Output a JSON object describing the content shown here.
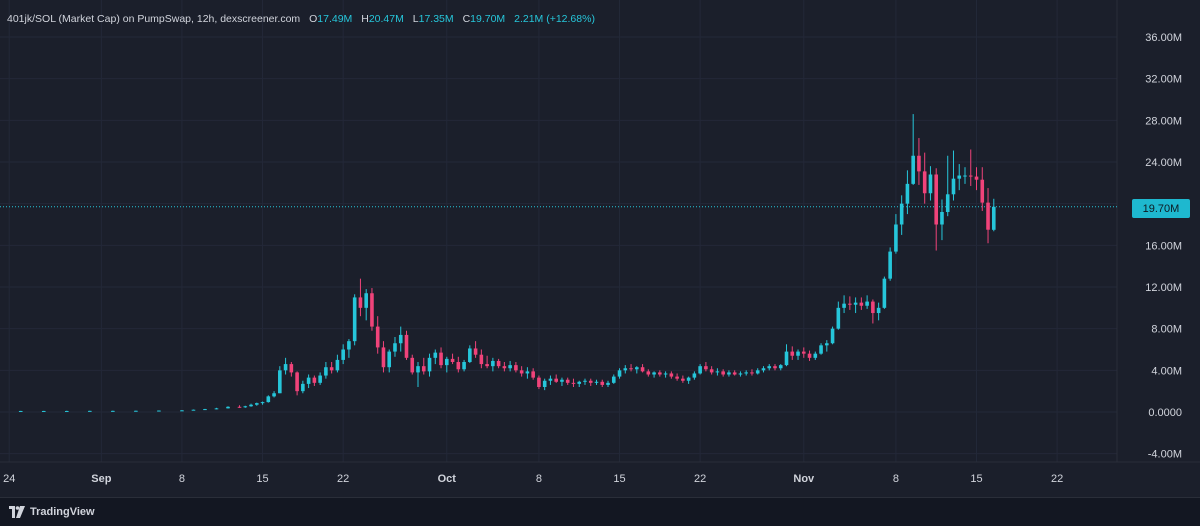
{
  "legend": {
    "title": "401jk/SOL (Market Cap) on PumpSwap, 12h, dexscreener.com",
    "o_label": "O",
    "o_value": "17.49M",
    "h_label": "H",
    "h_value": "20.47M",
    "l_label": "L",
    "l_value": "17.35M",
    "c_label": "C",
    "c_value": "19.70M",
    "change": "2.21M (+12.68%)"
  },
  "price_tag": "19.70M",
  "footer": {
    "brand": "TradingView",
    "logo_icon": "tradingview-logo-icon"
  },
  "colors": {
    "up": "#26c6da",
    "down": "#f0437a",
    "background": "#1b1f2b",
    "grid": "#232838",
    "text": "#d1d4dc"
  },
  "chart_data": {
    "type": "candlestick",
    "interval": "12h",
    "y_unit": "market cap (SOL)",
    "ylim": [
      -6,
      38
    ],
    "y_ticks": [
      -4,
      0,
      4,
      8,
      12,
      16,
      20,
      24,
      28,
      32,
      36
    ],
    "y_tick_labels": [
      "-4.00M",
      "0.0000",
      "4.00M",
      "8.00M",
      "12.00M",
      "16.00M",
      "20.00M",
      "24.00M",
      "28.00M",
      "32.00M",
      "36.00M"
    ],
    "x_tick_labels": [
      "24",
      "Sep",
      "8",
      "15",
      "22",
      "Oct",
      "8",
      "15",
      "22",
      "Nov",
      "8",
      "15",
      "22"
    ],
    "x_tick_days": [
      -7,
      1,
      8,
      15,
      22,
      31,
      39,
      46,
      53,
      62,
      70,
      77,
      84
    ],
    "x_tick_dates": [
      "2025-08-24",
      "2025-09-01",
      "2025-09-08",
      "2025-09-15",
      "2025-09-22",
      "2025-10-01",
      "2025-10-08",
      "2025-10-15",
      "2025-10-22",
      "2025-11-01",
      "2025-11-08",
      "2025-11-15",
      "2025-11-22"
    ],
    "x_range_days": [
      -7.8,
      89.2
    ],
    "current_price": 19.7,
    "grid": true,
    "candles": [
      {
        "d": -8.0,
        "o": 0.1,
        "h": 0.11,
        "l": 0.09,
        "c": 0.1
      },
      {
        "d": -6.0,
        "o": 0.1,
        "h": 0.11,
        "l": 0.09,
        "c": 0.1
      },
      {
        "d": -4.0,
        "o": 0.1,
        "h": 0.11,
        "l": 0.09,
        "c": 0.1
      },
      {
        "d": -2.0,
        "o": 0.1,
        "h": 0.12,
        "l": 0.09,
        "c": 0.1
      },
      {
        "d": 0.0,
        "o": 0.1,
        "h": 0.12,
        "l": 0.09,
        "c": 0.11
      },
      {
        "d": 2.0,
        "o": 0.11,
        "h": 0.13,
        "l": 0.1,
        "c": 0.11
      },
      {
        "d": 4.0,
        "o": 0.11,
        "h": 0.13,
        "l": 0.1,
        "c": 0.12
      },
      {
        "d": 6.0,
        "o": 0.12,
        "h": 0.15,
        "l": 0.11,
        "c": 0.14
      },
      {
        "d": 8.0,
        "o": 0.14,
        "h": 0.18,
        "l": 0.13,
        "c": 0.16
      },
      {
        "d": 9.0,
        "o": 0.16,
        "h": 0.24,
        "l": 0.15,
        "c": 0.22
      },
      {
        "d": 10.0,
        "o": 0.22,
        "h": 0.3,
        "l": 0.2,
        "c": 0.28
      },
      {
        "d": 11.0,
        "o": 0.28,
        "h": 0.4,
        "l": 0.26,
        "c": 0.35
      },
      {
        "d": 12.0,
        "o": 0.35,
        "h": 0.55,
        "l": 0.33,
        "c": 0.5
      },
      {
        "d": 13.0,
        "o": 0.5,
        "h": 0.65,
        "l": 0.4,
        "c": 0.45
      },
      {
        "d": 13.5,
        "o": 0.45,
        "h": 0.6,
        "l": 0.4,
        "c": 0.55
      },
      {
        "d": 14.0,
        "o": 0.55,
        "h": 0.8,
        "l": 0.5,
        "c": 0.7
      },
      {
        "d": 14.5,
        "o": 0.7,
        "h": 0.9,
        "l": 0.6,
        "c": 0.85
      },
      {
        "d": 15.0,
        "o": 0.85,
        "h": 1.0,
        "l": 0.7,
        "c": 0.95
      },
      {
        "d": 15.5,
        "o": 0.95,
        "h": 1.6,
        "l": 0.9,
        "c": 1.5
      },
      {
        "d": 16.0,
        "o": 1.5,
        "h": 2.0,
        "l": 1.4,
        "c": 1.8
      },
      {
        "d": 16.5,
        "o": 1.8,
        "h": 4.4,
        "l": 1.8,
        "c": 4.0
      },
      {
        "d": 17.0,
        "o": 4.0,
        "h": 5.2,
        "l": 3.6,
        "c": 4.6
      },
      {
        "d": 17.5,
        "o": 4.6,
        "h": 4.8,
        "l": 3.4,
        "c": 3.8
      },
      {
        "d": 18.0,
        "o": 3.8,
        "h": 3.9,
        "l": 1.6,
        "c": 2.0
      },
      {
        "d": 18.5,
        "o": 2.0,
        "h": 3.0,
        "l": 1.8,
        "c": 2.7
      },
      {
        "d": 19.0,
        "o": 2.7,
        "h": 3.6,
        "l": 2.3,
        "c": 3.3
      },
      {
        "d": 19.5,
        "o": 3.3,
        "h": 3.5,
        "l": 2.5,
        "c": 2.8
      },
      {
        "d": 20.0,
        "o": 2.8,
        "h": 3.8,
        "l": 2.6,
        "c": 3.5
      },
      {
        "d": 20.5,
        "o": 3.5,
        "h": 4.8,
        "l": 3.2,
        "c": 4.3
      },
      {
        "d": 21.0,
        "o": 4.3,
        "h": 4.8,
        "l": 3.7,
        "c": 4.0
      },
      {
        "d": 21.5,
        "o": 4.0,
        "h": 5.5,
        "l": 3.8,
        "c": 5.0
      },
      {
        "d": 22.0,
        "o": 5.0,
        "h": 6.5,
        "l": 4.6,
        "c": 6.0
      },
      {
        "d": 22.5,
        "o": 6.0,
        "h": 7.0,
        "l": 5.2,
        "c": 6.8
      },
      {
        "d": 23.0,
        "o": 6.8,
        "h": 11.3,
        "l": 6.4,
        "c": 11.0
      },
      {
        "d": 23.5,
        "o": 11.0,
        "h": 12.8,
        "l": 9.2,
        "c": 10.0
      },
      {
        "d": 24.0,
        "o": 10.0,
        "h": 11.8,
        "l": 8.8,
        "c": 11.4
      },
      {
        "d": 24.5,
        "o": 11.4,
        "h": 11.9,
        "l": 7.8,
        "c": 8.2
      },
      {
        "d": 25.0,
        "o": 8.2,
        "h": 9.2,
        "l": 5.6,
        "c": 6.2
      },
      {
        "d": 25.5,
        "o": 6.2,
        "h": 6.8,
        "l": 3.8,
        "c": 4.3
      },
      {
        "d": 26.0,
        "o": 4.3,
        "h": 6.0,
        "l": 3.8,
        "c": 5.8
      },
      {
        "d": 26.5,
        "o": 5.8,
        "h": 7.2,
        "l": 5.3,
        "c": 6.6
      },
      {
        "d": 27.0,
        "o": 6.6,
        "h": 8.2,
        "l": 5.8,
        "c": 7.4
      },
      {
        "d": 27.5,
        "o": 7.4,
        "h": 7.8,
        "l": 5.0,
        "c": 5.2
      },
      {
        "d": 28.0,
        "o": 5.2,
        "h": 5.5,
        "l": 3.6,
        "c": 3.8
      },
      {
        "d": 28.5,
        "o": 3.8,
        "h": 4.8,
        "l": 2.4,
        "c": 4.4
      },
      {
        "d": 29.0,
        "o": 4.4,
        "h": 5.2,
        "l": 3.6,
        "c": 3.9
      },
      {
        "d": 29.5,
        "o": 3.9,
        "h": 5.6,
        "l": 3.4,
        "c": 5.2
      },
      {
        "d": 30.0,
        "o": 5.2,
        "h": 6.0,
        "l": 4.6,
        "c": 5.7
      },
      {
        "d": 30.5,
        "o": 5.7,
        "h": 6.2,
        "l": 4.2,
        "c": 4.5
      },
      {
        "d": 31.0,
        "o": 4.5,
        "h": 5.3,
        "l": 3.8,
        "c": 5.1
      },
      {
        "d": 31.5,
        "o": 5.1,
        "h": 5.6,
        "l": 4.6,
        "c": 4.8
      },
      {
        "d": 32.0,
        "o": 4.8,
        "h": 5.3,
        "l": 3.8,
        "c": 4.1
      },
      {
        "d": 32.5,
        "o": 4.1,
        "h": 5.0,
        "l": 3.9,
        "c": 4.8
      },
      {
        "d": 33.0,
        "o": 4.8,
        "h": 6.4,
        "l": 4.7,
        "c": 6.1
      },
      {
        "d": 33.5,
        "o": 6.1,
        "h": 6.8,
        "l": 5.2,
        "c": 5.5
      },
      {
        "d": 34.0,
        "o": 5.5,
        "h": 6.0,
        "l": 4.2,
        "c": 4.6
      },
      {
        "d": 34.5,
        "o": 4.6,
        "h": 5.4,
        "l": 4.2,
        "c": 4.4
      },
      {
        "d": 35.0,
        "o": 4.4,
        "h": 5.2,
        "l": 3.9,
        "c": 4.9
      },
      {
        "d": 35.5,
        "o": 4.9,
        "h": 5.1,
        "l": 4.2,
        "c": 4.4
      },
      {
        "d": 36.0,
        "o": 4.4,
        "h": 4.8,
        "l": 3.9,
        "c": 4.2
      },
      {
        "d": 36.5,
        "o": 4.2,
        "h": 4.9,
        "l": 3.9,
        "c": 4.5
      },
      {
        "d": 37.0,
        "o": 4.5,
        "h": 4.8,
        "l": 3.8,
        "c": 4.0
      },
      {
        "d": 37.5,
        "o": 4.0,
        "h": 4.4,
        "l": 3.4,
        "c": 3.7
      },
      {
        "d": 38.0,
        "o": 3.7,
        "h": 4.3,
        "l": 3.2,
        "c": 3.9
      },
      {
        "d": 38.5,
        "o": 3.9,
        "h": 4.2,
        "l": 3.1,
        "c": 3.3
      },
      {
        "d": 39.0,
        "o": 3.3,
        "h": 3.5,
        "l": 2.2,
        "c": 2.4
      },
      {
        "d": 39.5,
        "o": 2.4,
        "h": 3.2,
        "l": 2.1,
        "c": 3.0
      },
      {
        "d": 40.0,
        "o": 3.0,
        "h": 3.5,
        "l": 2.6,
        "c": 3.2
      },
      {
        "d": 40.5,
        "o": 3.2,
        "h": 3.6,
        "l": 2.8,
        "c": 2.9
      },
      {
        "d": 41.0,
        "o": 2.9,
        "h": 3.3,
        "l": 2.5,
        "c": 3.1
      },
      {
        "d": 41.5,
        "o": 3.1,
        "h": 3.3,
        "l": 2.6,
        "c": 2.8
      },
      {
        "d": 42.0,
        "o": 2.8,
        "h": 3.2,
        "l": 2.4,
        "c": 2.7
      },
      {
        "d": 42.5,
        "o": 2.7,
        "h": 3.0,
        "l": 2.4,
        "c": 2.9
      },
      {
        "d": 43.0,
        "o": 2.9,
        "h": 3.2,
        "l": 2.6,
        "c": 3.0
      },
      {
        "d": 43.5,
        "o": 3.0,
        "h": 3.2,
        "l": 2.5,
        "c": 2.8
      },
      {
        "d": 44.0,
        "o": 2.8,
        "h": 3.1,
        "l": 2.6,
        "c": 2.9
      },
      {
        "d": 44.5,
        "o": 2.9,
        "h": 3.1,
        "l": 2.4,
        "c": 2.6
      },
      {
        "d": 45.0,
        "o": 2.6,
        "h": 3.0,
        "l": 2.4,
        "c": 2.8
      },
      {
        "d": 45.5,
        "o": 2.8,
        "h": 3.6,
        "l": 2.7,
        "c": 3.4
      },
      {
        "d": 46.0,
        "o": 3.4,
        "h": 4.2,
        "l": 3.2,
        "c": 4.0
      },
      {
        "d": 46.5,
        "o": 4.0,
        "h": 4.5,
        "l": 3.7,
        "c": 4.2
      },
      {
        "d": 47.0,
        "o": 4.2,
        "h": 4.6,
        "l": 3.9,
        "c": 4.1
      },
      {
        "d": 47.5,
        "o": 4.1,
        "h": 4.4,
        "l": 3.7,
        "c": 4.3
      },
      {
        "d": 48.0,
        "o": 4.3,
        "h": 4.6,
        "l": 3.8,
        "c": 3.9
      },
      {
        "d": 48.5,
        "o": 3.9,
        "h": 4.1,
        "l": 3.4,
        "c": 3.6
      },
      {
        "d": 49.0,
        "o": 3.6,
        "h": 3.9,
        "l": 3.3,
        "c": 3.8
      },
      {
        "d": 49.5,
        "o": 3.8,
        "h": 4.0,
        "l": 3.4,
        "c": 3.6
      },
      {
        "d": 50.0,
        "o": 3.6,
        "h": 3.9,
        "l": 3.3,
        "c": 3.7
      },
      {
        "d": 50.5,
        "o": 3.7,
        "h": 3.9,
        "l": 3.2,
        "c": 3.4
      },
      {
        "d": 51.0,
        "o": 3.4,
        "h": 3.7,
        "l": 3.0,
        "c": 3.2
      },
      {
        "d": 51.5,
        "o": 3.2,
        "h": 3.5,
        "l": 2.8,
        "c": 3.0
      },
      {
        "d": 52.0,
        "o": 3.0,
        "h": 3.4,
        "l": 2.7,
        "c": 3.3
      },
      {
        "d": 52.5,
        "o": 3.3,
        "h": 3.9,
        "l": 3.1,
        "c": 3.7
      },
      {
        "d": 53.0,
        "o": 3.7,
        "h": 4.6,
        "l": 3.6,
        "c": 4.4
      },
      {
        "d": 53.5,
        "o": 4.4,
        "h": 4.8,
        "l": 3.9,
        "c": 4.1
      },
      {
        "d": 54.0,
        "o": 4.1,
        "h": 4.4,
        "l": 3.6,
        "c": 3.8
      },
      {
        "d": 54.5,
        "o": 3.8,
        "h": 4.2,
        "l": 3.5,
        "c": 3.9
      },
      {
        "d": 55.0,
        "o": 3.9,
        "h": 4.1,
        "l": 3.4,
        "c": 3.6
      },
      {
        "d": 55.5,
        "o": 3.6,
        "h": 4.0,
        "l": 3.4,
        "c": 3.8
      },
      {
        "d": 56.0,
        "o": 3.8,
        "h": 4.0,
        "l": 3.5,
        "c": 3.6
      },
      {
        "d": 56.5,
        "o": 3.6,
        "h": 3.9,
        "l": 3.4,
        "c": 3.7
      },
      {
        "d": 57.0,
        "o": 3.7,
        "h": 4.0,
        "l": 3.5,
        "c": 3.8
      },
      {
        "d": 57.5,
        "o": 3.8,
        "h": 4.1,
        "l": 3.5,
        "c": 3.7
      },
      {
        "d": 58.0,
        "o": 3.7,
        "h": 4.2,
        "l": 3.6,
        "c": 4.0
      },
      {
        "d": 58.5,
        "o": 4.0,
        "h": 4.4,
        "l": 3.8,
        "c": 4.2
      },
      {
        "d": 59.0,
        "o": 4.2,
        "h": 4.6,
        "l": 4.0,
        "c": 4.4
      },
      {
        "d": 59.5,
        "o": 4.4,
        "h": 4.6,
        "l": 4.0,
        "c": 4.2
      },
      {
        "d": 60.0,
        "o": 4.2,
        "h": 4.6,
        "l": 4.0,
        "c": 4.5
      },
      {
        "d": 60.5,
        "o": 4.5,
        "h": 6.5,
        "l": 4.4,
        "c": 5.8
      },
      {
        "d": 61.0,
        "o": 5.8,
        "h": 6.3,
        "l": 5.0,
        "c": 5.4
      },
      {
        "d": 61.5,
        "o": 5.4,
        "h": 6.0,
        "l": 5.0,
        "c": 5.8
      },
      {
        "d": 62.0,
        "o": 5.8,
        "h": 6.2,
        "l": 5.2,
        "c": 5.6
      },
      {
        "d": 62.5,
        "o": 5.6,
        "h": 5.9,
        "l": 4.9,
        "c": 5.2
      },
      {
        "d": 63.0,
        "o": 5.2,
        "h": 5.8,
        "l": 5.0,
        "c": 5.6
      },
      {
        "d": 63.5,
        "o": 5.6,
        "h": 6.6,
        "l": 5.5,
        "c": 6.4
      },
      {
        "d": 64.0,
        "o": 6.4,
        "h": 6.9,
        "l": 5.8,
        "c": 6.6
      },
      {
        "d": 64.5,
        "o": 6.6,
        "h": 8.2,
        "l": 6.5,
        "c": 8.0
      },
      {
        "d": 65.0,
        "o": 8.0,
        "h": 10.6,
        "l": 7.9,
        "c": 10.0
      },
      {
        "d": 65.5,
        "o": 10.0,
        "h": 11.2,
        "l": 9.5,
        "c": 10.4
      },
      {
        "d": 66.0,
        "o": 10.4,
        "h": 11.1,
        "l": 9.8,
        "c": 10.3
      },
      {
        "d": 66.5,
        "o": 10.3,
        "h": 11.0,
        "l": 9.5,
        "c": 10.5
      },
      {
        "d": 67.0,
        "o": 10.5,
        "h": 11.0,
        "l": 9.8,
        "c": 10.2
      },
      {
        "d": 67.5,
        "o": 10.2,
        "h": 11.2,
        "l": 9.9,
        "c": 10.6
      },
      {
        "d": 68.0,
        "o": 10.6,
        "h": 10.8,
        "l": 8.5,
        "c": 9.5
      },
      {
        "d": 68.5,
        "o": 9.5,
        "h": 10.5,
        "l": 8.8,
        "c": 10.0
      },
      {
        "d": 69.0,
        "o": 10.0,
        "h": 13.0,
        "l": 9.9,
        "c": 12.8
      },
      {
        "d": 69.5,
        "o": 12.8,
        "h": 15.8,
        "l": 12.6,
        "c": 15.4
      },
      {
        "d": 70.0,
        "o": 15.4,
        "h": 19.0,
        "l": 15.2,
        "c": 18.0
      },
      {
        "d": 70.5,
        "o": 18.0,
        "h": 20.8,
        "l": 17.0,
        "c": 20.0
      },
      {
        "d": 71.0,
        "o": 20.0,
        "h": 23.2,
        "l": 19.0,
        "c": 21.9
      },
      {
        "d": 71.5,
        "o": 21.9,
        "h": 28.6,
        "l": 21.8,
        "c": 24.6
      },
      {
        "d": 72.0,
        "o": 24.6,
        "h": 26.3,
        "l": 21.8,
        "c": 23.1
      },
      {
        "d": 72.5,
        "o": 23.1,
        "h": 24.9,
        "l": 20.0,
        "c": 21.0
      },
      {
        "d": 73.0,
        "o": 21.0,
        "h": 23.6,
        "l": 20.3,
        "c": 22.8
      },
      {
        "d": 73.5,
        "o": 22.8,
        "h": 23.4,
        "l": 15.5,
        "c": 18.0
      },
      {
        "d": 74.0,
        "o": 18.0,
        "h": 20.4,
        "l": 16.5,
        "c": 19.2
      },
      {
        "d": 74.5,
        "o": 19.2,
        "h": 24.6,
        "l": 18.8,
        "c": 20.9
      },
      {
        "d": 75.0,
        "o": 20.9,
        "h": 25.1,
        "l": 20.3,
        "c": 22.4
      },
      {
        "d": 75.5,
        "o": 22.4,
        "h": 23.8,
        "l": 21.3,
        "c": 22.7
      },
      {
        "d": 76.0,
        "o": 22.7,
        "h": 23.5,
        "l": 21.9,
        "c": 22.7
      },
      {
        "d": 76.5,
        "o": 22.7,
        "h": 25.2,
        "l": 21.7,
        "c": 22.6
      },
      {
        "d": 77.0,
        "o": 22.6,
        "h": 23.5,
        "l": 21.3,
        "c": 22.3
      },
      {
        "d": 77.5,
        "o": 22.3,
        "h": 23.5,
        "l": 19.3,
        "c": 20.1
      },
      {
        "d": 78.0,
        "o": 20.1,
        "h": 21.5,
        "l": 16.2,
        "c": 17.5
      },
      {
        "d": 78.5,
        "o": 17.49,
        "h": 20.47,
        "l": 17.35,
        "c": 19.7
      }
    ]
  }
}
